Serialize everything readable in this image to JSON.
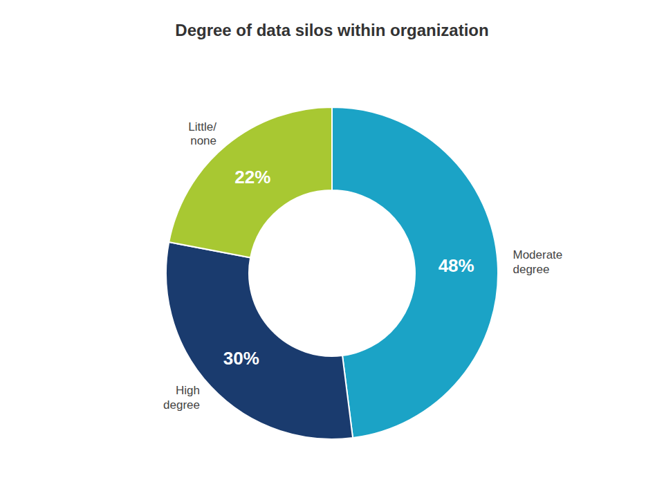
{
  "chart_data": {
    "type": "donut",
    "title": "Degree of data silos within organization",
    "categories": [
      "Moderate\ndegree",
      "High\ndegree",
      "Little/\nnone"
    ],
    "values": [
      48,
      30,
      22
    ],
    "value_labels": [
      "48%",
      "30%",
      "22%"
    ],
    "colors": [
      "#1ba3c6",
      "#1a3b6e",
      "#a8c832"
    ],
    "data_labels": true
  }
}
